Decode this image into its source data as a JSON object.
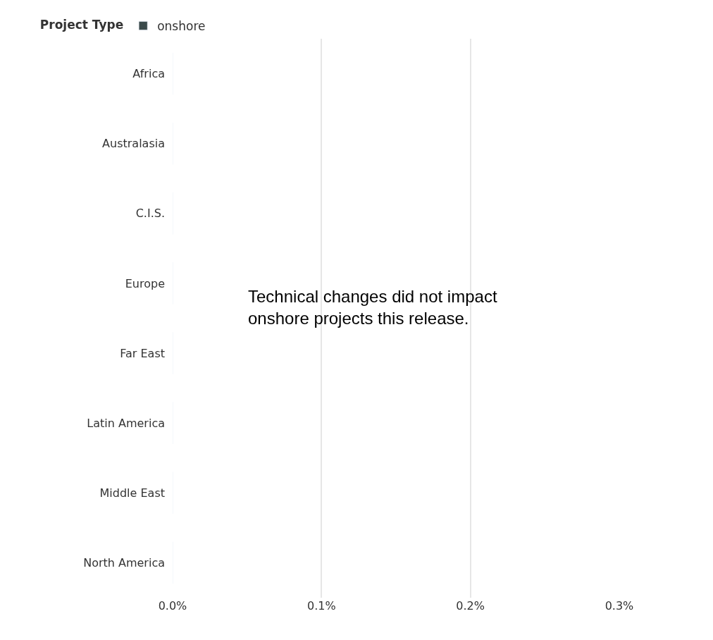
{
  "chart_data": {
    "type": "bar",
    "orientation": "horizontal",
    "categories": [
      "Africa",
      "Australasia",
      "C.I.S.",
      "Europe",
      "Far East",
      "Latin America",
      "Middle East",
      "North America"
    ],
    "series": [
      {
        "name": "onshore",
        "color": "#3b4a4a",
        "values": [
          0,
          0,
          0,
          0,
          0,
          0,
          0,
          0
        ]
      }
    ],
    "legend_title": "Project Type",
    "legend": "top left",
    "xlim": [
      0,
      0.3
    ],
    "xticks": [
      {
        "value": 0,
        "label": "0.0%"
      },
      {
        "value": 0.1,
        "label": "0.1%"
      },
      {
        "value": 0.2,
        "label": "0.2%"
      },
      {
        "value": 0.3,
        "label": "0.3%"
      }
    ],
    "grid": "x",
    "annotations": [
      "Technical changes did not impact\nonshore projects this release."
    ]
  }
}
